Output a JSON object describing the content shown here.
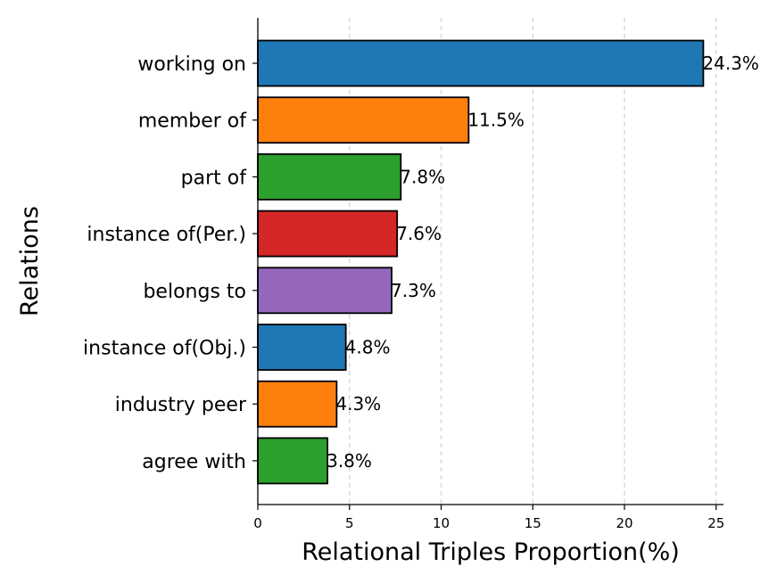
{
  "chart_data": {
    "type": "bar",
    "orientation": "horizontal",
    "xlabel": "Relational Triples Proportion(%)",
    "ylabel": "Relations",
    "xlim": [
      0,
      25.4
    ],
    "xticks": [
      "0",
      "5",
      "10",
      "15",
      "20",
      "25"
    ],
    "grid": "vertical dashed",
    "categories": [
      "working on",
      "member of",
      "part of",
      "instance of(Per.)",
      "belongs to",
      "instance of(Obj.)",
      "industry peer",
      "agree with"
    ],
    "values": [
      24.3,
      11.5,
      7.8,
      7.6,
      7.3,
      4.8,
      4.3,
      3.8
    ],
    "data_labels": [
      "24.3%",
      "11.5%",
      "7.8%",
      "7.6%",
      "7.3%",
      "4.8%",
      "4.3%",
      "3.8%"
    ],
    "colors": [
      "#1f77b4",
      "#ff7f0e",
      "#2ca02c",
      "#d62728",
      "#9467bd",
      "#1f77b4",
      "#ff7f0e",
      "#2ca02c"
    ]
  }
}
